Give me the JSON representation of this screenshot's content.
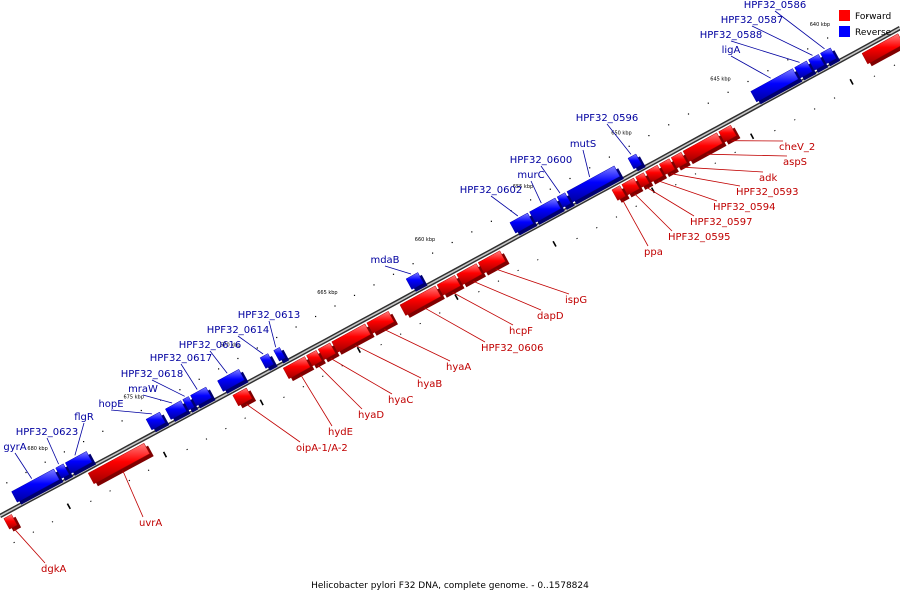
{
  "caption": "Helicobacter pylori F32 DNA, complete genome. - 0..1578824",
  "legend": {
    "forward_label": "Forward",
    "reverse_label": "Reverse",
    "forward_color": "#ff0000",
    "reverse_color": "#0000ff"
  },
  "colors": {
    "forward_label": "#c00000",
    "reverse_label": "#0000a0",
    "backbone": "#808080"
  },
  "chart_data": {
    "type": "linear-genome-map",
    "range_kbp": [
      640,
      680
    ],
    "ticks": [
      {
        "kbp": 640,
        "label": "640 kbp"
      },
      {
        "kbp": 645,
        "label": "645 kbp"
      },
      {
        "kbp": 650,
        "label": "650 kbp"
      },
      {
        "kbp": 655,
        "label": "655 kbp"
      },
      {
        "kbp": 660,
        "label": "660 kbp"
      },
      {
        "kbp": 665,
        "label": "665 kbp"
      },
      {
        "kbp": 670,
        "label": "670 kbp"
      },
      {
        "kbp": 675,
        "label": "675 kbp"
      },
      {
        "kbp": 680,
        "label": "680 kbp"
      }
    ],
    "genes": [
      {
        "name": "",
        "strand": "forward",
        "start": 637.2,
        "end": 639.0
      },
      {
        "name": "HPF32_0586",
        "strand": "reverse",
        "start": 640.1,
        "end": 640.6
      },
      {
        "name": "HPF32_0587",
        "strand": "reverse",
        "start": 640.7,
        "end": 641.2
      },
      {
        "name": "HPF32_0588",
        "strand": "reverse",
        "start": 641.3,
        "end": 641.9
      },
      {
        "name": "ligA",
        "strand": "reverse",
        "start": 642.0,
        "end": 644.1
      },
      {
        "name": "cheV_2",
        "strand": "forward",
        "start": 645.6,
        "end": 646.2
      },
      {
        "name": "aspS",
        "strand": "forward",
        "start": 646.3,
        "end": 648.0
      },
      {
        "name": "adk",
        "strand": "forward",
        "start": 648.1,
        "end": 648.6
      },
      {
        "name": "HPF32_0593",
        "strand": "forward",
        "start": 648.7,
        "end": 649.2
      },
      {
        "name": "HPF32_0594",
        "strand": "forward",
        "start": 649.3,
        "end": 649.9
      },
      {
        "name": "HPF32_0597",
        "strand": "forward",
        "start": 650.0,
        "end": 650.4
      },
      {
        "name": "HPF32_0595",
        "strand": "forward",
        "start": 650.5,
        "end": 651.1
      },
      {
        "name": "ppa",
        "strand": "forward",
        "start": 651.2,
        "end": 651.6
      },
      {
        "name": "HPF32_0596",
        "strand": "reverse",
        "start": 649.9,
        "end": 650.3
      },
      {
        "name": "mutS",
        "strand": "reverse",
        "start": 651.0,
        "end": 653.4
      },
      {
        "name": "HPF32_0600",
        "strand": "reverse",
        "start": 653.5,
        "end": 653.9
      },
      {
        "name": "murC",
        "strand": "reverse",
        "start": 654.0,
        "end": 655.3
      },
      {
        "name": "HPF32_0602",
        "strand": "reverse",
        "start": 655.4,
        "end": 656.3
      },
      {
        "name": "ispG",
        "strand": "forward",
        "start": 657.3,
        "end": 658.4
      },
      {
        "name": "dapD",
        "strand": "forward",
        "start": 658.5,
        "end": 659.5
      },
      {
        "name": "hcpF",
        "strand": "forward",
        "start": 659.6,
        "end": 660.5
      },
      {
        "name": "HPF32_0606",
        "strand": "forward",
        "start": 660.6,
        "end": 662.4
      },
      {
        "name": "mdaB",
        "strand": "reverse",
        "start": 661.0,
        "end": 661.6
      },
      {
        "name": "hyaA",
        "strand": "forward",
        "start": 663.0,
        "end": 664.1
      },
      {
        "name": "hyaB",
        "strand": "forward",
        "start": 664.2,
        "end": 665.9
      },
      {
        "name": "hyaC",
        "strand": "forward",
        "start": 666.0,
        "end": 666.6
      },
      {
        "name": "hyaD",
        "strand": "forward",
        "start": 666.7,
        "end": 667.2
      },
      {
        "name": "hydE",
        "strand": "forward",
        "start": 667.3,
        "end": 668.4
      },
      {
        "name": "HPF32_0613",
        "strand": "reverse",
        "start": 668.1,
        "end": 668.4
      },
      {
        "name": "HPF32_0614",
        "strand": "reverse",
        "start": 668.7,
        "end": 669.1
      },
      {
        "name": "oipA-1/A-2",
        "strand": "forward",
        "start": 670.3,
        "end": 671.0
      },
      {
        "name": "HPF32_0616",
        "strand": "reverse",
        "start": 670.2,
        "end": 671.3
      },
      {
        "name": "HPF32_0617",
        "strand": "reverse",
        "start": 671.9,
        "end": 672.7
      },
      {
        "name": "HPF32_0618",
        "strand": "reverse",
        "start": 672.8,
        "end": 673.1
      },
      {
        "name": "mraW",
        "strand": "reverse",
        "start": 673.2,
        "end": 674.0
      },
      {
        "name": "hopE",
        "strand": "reverse",
        "start": 674.3,
        "end": 675.0
      },
      {
        "name": "uvrA",
        "strand": "forward",
        "start": 675.6,
        "end": 678.5
      },
      {
        "name": "flgR",
        "strand": "reverse",
        "start": 678.1,
        "end": 679.2
      },
      {
        "name": "HPF32_0623",
        "strand": "reverse",
        "start": 679.3,
        "end": 679.7
      },
      {
        "name": "gyrA",
        "strand": "reverse",
        "start": 679.8,
        "end": 682.0
      },
      {
        "name": "dgkA",
        "strand": "forward",
        "start": 682.5,
        "end": 682.9
      }
    ]
  }
}
